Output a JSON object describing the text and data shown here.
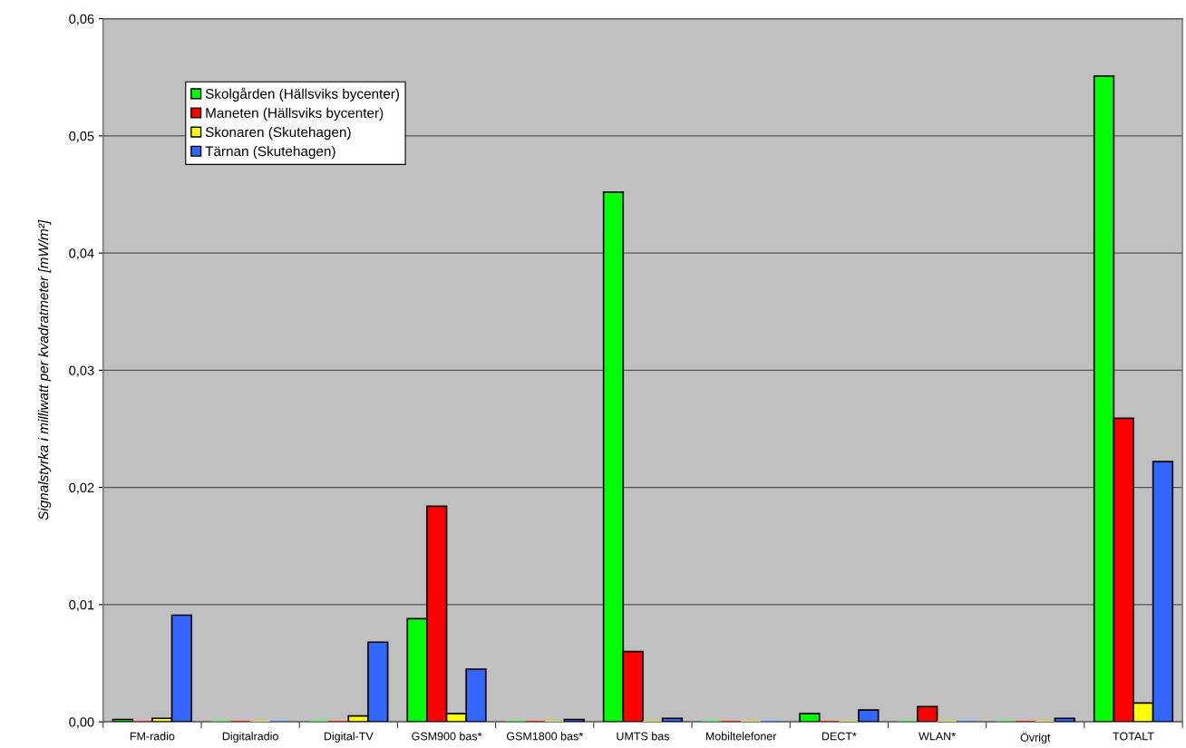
{
  "chart_data": {
    "type": "bar",
    "ylabel": "Signalstyrka i milliwatt per kvadratmeter [mW/m²]",
    "categories": [
      "FM-radio",
      "Digitalradio",
      "Digital-TV",
      "GSM900 bas*",
      "GSM1800 bas*",
      "UMTS bas",
      "Mobiltelefoner",
      "DECT*",
      "WLAN*",
      "Övrigt",
      "TOTALT"
    ],
    "series": [
      {
        "name": "Skolgården (Hällsviks bycenter)",
        "color": "#00ff00",
        "values": [
          0.0002,
          0,
          0,
          0.0088,
          0,
          0.0452,
          0,
          0.0007,
          0,
          0,
          0.0551
        ]
      },
      {
        "name": "Maneten (Hällsviks bycenter)",
        "color": "#ff0000",
        "values": [
          0,
          0,
          0,
          0.0184,
          0,
          0.006,
          0,
          0,
          0.0013,
          0,
          0.0259
        ]
      },
      {
        "name": "Skonaren (Skutehagen)",
        "color": "#ffff00",
        "values": [
          0.0003,
          0,
          0.0005,
          0.0007,
          0,
          0,
          0,
          0,
          0,
          0,
          0.0016
        ]
      },
      {
        "name": "Tärnan (Skutehagen)",
        "color": "#3366ff",
        "values": [
          0.0091,
          0,
          0.0068,
          0.0045,
          0.0002,
          0.0003,
          0,
          0.001,
          0,
          0.0003,
          0.0222
        ]
      }
    ],
    "ylim": [
      0,
      0.06
    ],
    "yticks": [
      {
        "value": 0,
        "label": "0,00"
      },
      {
        "value": 0.01,
        "label": "0,01"
      },
      {
        "value": 0.02,
        "label": "0,02"
      },
      {
        "value": 0.03,
        "label": "0,03"
      },
      {
        "value": 0.04,
        "label": "0,04"
      },
      {
        "value": 0.05,
        "label": "0,05"
      },
      {
        "value": 0.06,
        "label": "0,06"
      }
    ],
    "grid": "y",
    "legend": "top left"
  }
}
